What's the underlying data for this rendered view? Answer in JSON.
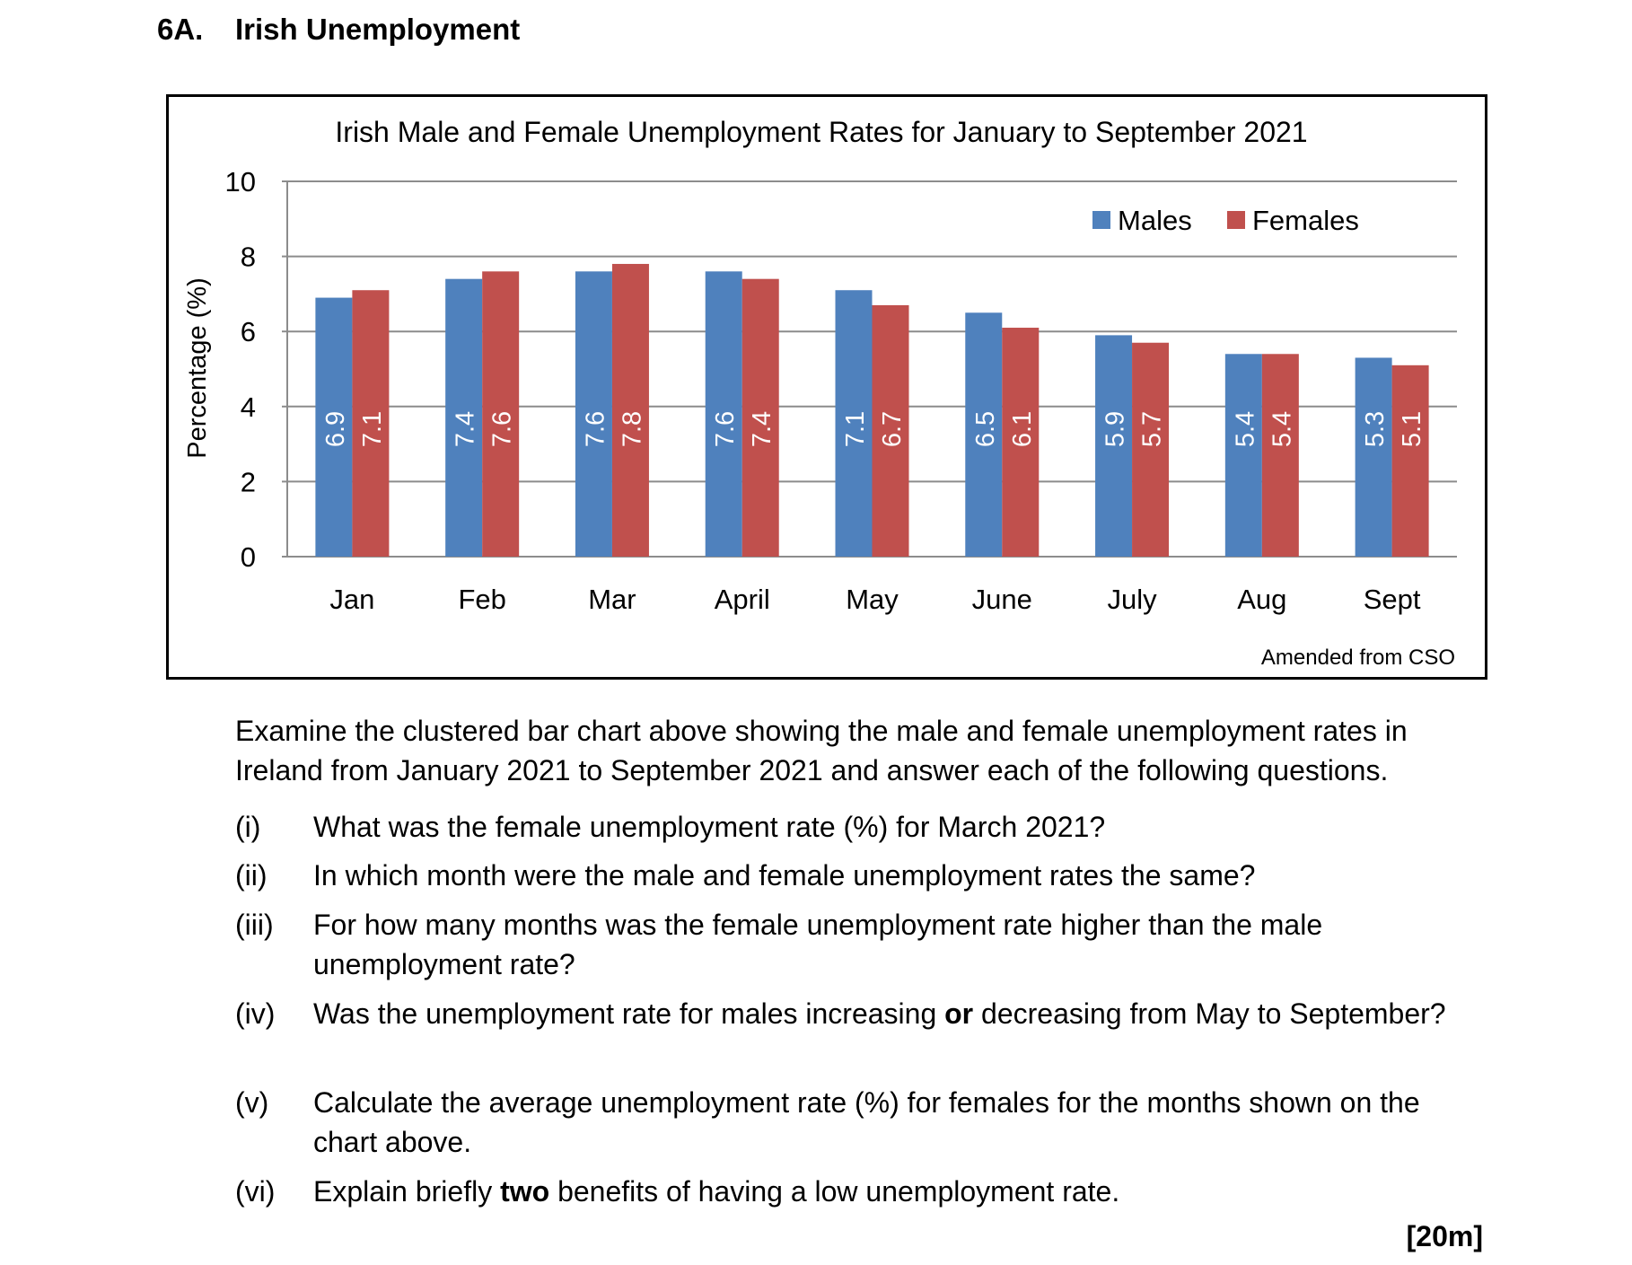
{
  "heading": {
    "number": "6A.",
    "title": "Irish Unemployment"
  },
  "chart_data": {
    "type": "bar",
    "title": "Irish Male and Female Unemployment Rates for January to September 2021",
    "xlabel": "",
    "ylabel": "Percentage (%)",
    "ylim": [
      0,
      10
    ],
    "yticks": [
      0,
      2,
      4,
      6,
      8,
      10
    ],
    "grid": true,
    "legend_position": "top-right",
    "categories": [
      "Jan",
      "Feb",
      "Mar",
      "April",
      "May",
      "June",
      "July",
      "Aug",
      "Sept"
    ],
    "series": [
      {
        "name": "Males",
        "color": "#4F81BD",
        "values": [
          6.9,
          7.4,
          7.6,
          7.6,
          7.1,
          6.5,
          5.9,
          5.4,
          5.3
        ]
      },
      {
        "name": "Females",
        "color": "#C0504D",
        "values": [
          7.1,
          7.6,
          7.8,
          7.4,
          6.7,
          6.1,
          5.7,
          5.4,
          5.1
        ]
      }
    ],
    "data_labels": true,
    "source_note": "Amended from CSO"
  },
  "intro": "Examine the clustered bar chart above showing the male and female unemployment rates in Ireland from January 2021 to September 2021 and answer each of the following questions.",
  "questions": [
    {
      "label": "(i)",
      "text": "What was the female unemployment rate (%) for March 2021?"
    },
    {
      "label": "(ii)",
      "text": "In which month were the male and female unemployment rates the same?"
    },
    {
      "label": "(iii)",
      "text": "For how many months was the female unemployment rate higher than the male unemployment rate?"
    },
    {
      "label": "(iv)",
      "pre": "Was the unemployment rate for males increasing ",
      "bold": "or",
      "post": " decreasing from May to September?"
    },
    {
      "label": "(v)",
      "text": "Calculate the average unemployment rate (%) for females for the months shown on the chart above."
    },
    {
      "label": "(vi)",
      "pre": "Explain briefly ",
      "bold": "two",
      "post": " benefits of having a low unemployment rate."
    }
  ],
  "marks": "[20m]"
}
